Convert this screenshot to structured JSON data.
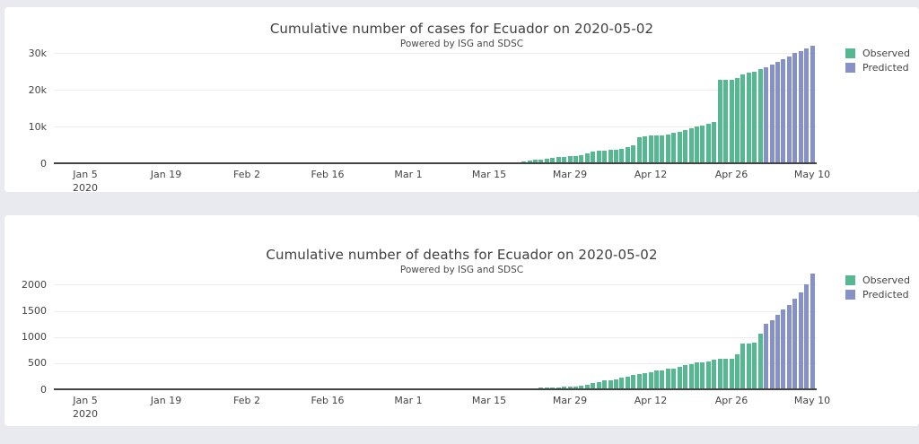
{
  "page": {
    "background_color": "#e8eaf0",
    "card_color": "#ffffff",
    "observed_color": "#55b890",
    "predicted_color": "#8591c7"
  },
  "chart_data": [
    {
      "type": "bar",
      "title": "Cumulative number of cases for Ecuador on 2020-05-02",
      "subtitle": "Powered by ISG and SDSC",
      "legend_position": "top-right",
      "grid": true,
      "ylim": [
        0,
        32800
      ],
      "y_axis": {
        "ticks": [
          {
            "value": 0,
            "label": "0"
          },
          {
            "value": 10000,
            "label": "10k"
          },
          {
            "value": 20000,
            "label": "20k"
          },
          {
            "value": 30000,
            "label": "30k"
          }
        ]
      },
      "x_axis": {
        "ticks": [
          {
            "date": "2020-01-05",
            "label": "Jan 5",
            "sublabel": "2020"
          },
          {
            "date": "2020-01-19",
            "label": "Jan 19"
          },
          {
            "date": "2020-02-02",
            "label": "Feb 2"
          },
          {
            "date": "2020-02-16",
            "label": "Feb 16"
          },
          {
            "date": "2020-03-01",
            "label": "Mar 1"
          },
          {
            "date": "2020-03-15",
            "label": "Mar 15"
          },
          {
            "date": "2020-03-29",
            "label": "Mar 29"
          },
          {
            "date": "2020-04-12",
            "label": "Apr 12"
          },
          {
            "date": "2020-04-26",
            "label": "Apr 26"
          },
          {
            "date": "2020-05-10",
            "label": "May 10"
          }
        ]
      },
      "series": [
        {
          "name": "Observed",
          "color": "#55b890",
          "start_date": "2020-03-01",
          "values": [
            6,
            6,
            7,
            10,
            13,
            13,
            14,
            14,
            15,
            15,
            17,
            17,
            23,
            28,
            37,
            58,
            111,
            168,
            260,
            367,
            506,
            789,
            981,
            1082,
            1173,
            1403,
            1595,
            1823,
            1924,
            1962,
            2240,
            2748,
            3163,
            3368,
            3465,
            3646,
            3747,
            3995,
            4450,
            4965,
            7161,
            7257,
            7466,
            7529,
            7603,
            7858,
            8225,
            8450,
            9022,
            9468,
            10128,
            10398,
            10850,
            11183,
            22719,
            22719,
            22719,
            23240,
            24258,
            24675,
            24934,
            25600
          ]
        },
        {
          "name": "Predicted",
          "color": "#8591c7",
          "start_date": "2020-05-02",
          "values": [
            26300,
            27000,
            27700,
            28500,
            29200,
            30000,
            30700,
            31400,
            32100
          ]
        }
      ]
    },
    {
      "type": "bar",
      "title": "Cumulative number of deaths for Ecuador on 2020-05-02",
      "subtitle": "Powered by ISG and SDSC",
      "legend_position": "top-right",
      "grid": true,
      "ylim": [
        0,
        2300
      ],
      "y_axis": {
        "ticks": [
          {
            "value": 0,
            "label": "0"
          },
          {
            "value": 500,
            "label": "500"
          },
          {
            "value": 1000,
            "label": "1000"
          },
          {
            "value": 1500,
            "label": "1500"
          },
          {
            "value": 2000,
            "label": "2000"
          }
        ]
      },
      "x_axis": {
        "ticks": [
          {
            "date": "2020-01-05",
            "label": "Jan 5",
            "sublabel": "2020"
          },
          {
            "date": "2020-01-19",
            "label": "Jan 19"
          },
          {
            "date": "2020-02-02",
            "label": "Feb 2"
          },
          {
            "date": "2020-02-16",
            "label": "Feb 16"
          },
          {
            "date": "2020-03-01",
            "label": "Mar 1"
          },
          {
            "date": "2020-03-15",
            "label": "Mar 15"
          },
          {
            "date": "2020-03-29",
            "label": "Mar 29"
          },
          {
            "date": "2020-04-12",
            "label": "Apr 12"
          },
          {
            "date": "2020-04-26",
            "label": "Apr 26"
          },
          {
            "date": "2020-05-10",
            "label": "May 10"
          }
        ]
      },
      "series": [
        {
          "name": "Observed",
          "color": "#55b890",
          "start_date": "2020-03-14",
          "values": [
            2,
            2,
            2,
            3,
            3,
            5,
            7,
            10,
            14,
            18,
            27,
            28,
            34,
            36,
            48,
            58,
            60,
            75,
            93,
            120,
            145,
            172,
            180,
            191,
            220,
            242,
            272,
            297,
            315,
            333,
            355,
            369,
            388,
            403,
            421,
            456,
            474,
            507,
            520,
            537,
            560,
            576,
            576,
            580,
            663,
            871,
            883,
            900,
            1063
          ]
        },
        {
          "name": "Predicted",
          "color": "#8591c7",
          "start_date": "2020-05-02",
          "values": [
            1250,
            1330,
            1420,
            1520,
            1620,
            1740,
            1860,
            2010,
            2210
          ]
        }
      ]
    }
  ]
}
